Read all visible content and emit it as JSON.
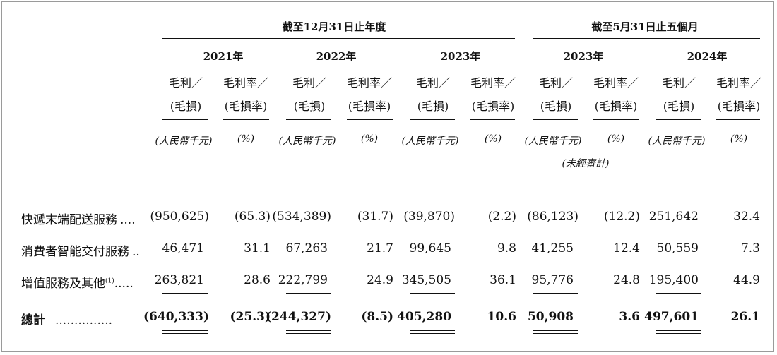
{
  "header": {
    "group1": "截至12月31日止年度",
    "group2": "截至5月31日止五個月",
    "years": [
      "2021年",
      "2022年",
      "2023年",
      "2023年",
      "2024年"
    ],
    "sub_left": [
      "毛利／",
      "(毛損)"
    ],
    "sub_right": [
      "毛利率／",
      "(毛損率)"
    ],
    "unit_left": "(人民幣千元)",
    "unit_right": "(%)",
    "unaudited": "(未經審計)"
  },
  "rows": [
    {
      "label": "快遞末端配送服務",
      "dots": "....",
      "values": [
        "(950,625)",
        "(65.3)",
        "(534,389)",
        "(31.7)",
        "(39,870)",
        "(2.2)",
        "(86,123)",
        "(12.2)",
        "251,642",
        "32.4"
      ]
    },
    {
      "label": "消費者智能交付服務",
      "dots": "..",
      "values": [
        "46,471",
        "31.1",
        "67,263",
        "21.7",
        "99,645",
        "9.8",
        "41,255",
        "12.4",
        "50,559",
        "7.3"
      ]
    },
    {
      "label": "增值服務及其他",
      "sup": "(1)",
      "dots": ".....",
      "values": [
        "263,821",
        "28.6",
        "222,799",
        "24.9",
        "345,505",
        "36.1",
        "95,776",
        "24.8",
        "195,400",
        "44.9"
      ]
    }
  ],
  "total": {
    "label": "總計",
    "dots": "...............",
    "values": [
      "(640,333)",
      "(25.3)",
      "(244,327)",
      "(8.5)",
      "405,280",
      "10.6",
      "50,908",
      "3.6",
      "497,601",
      "26.1"
    ]
  }
}
